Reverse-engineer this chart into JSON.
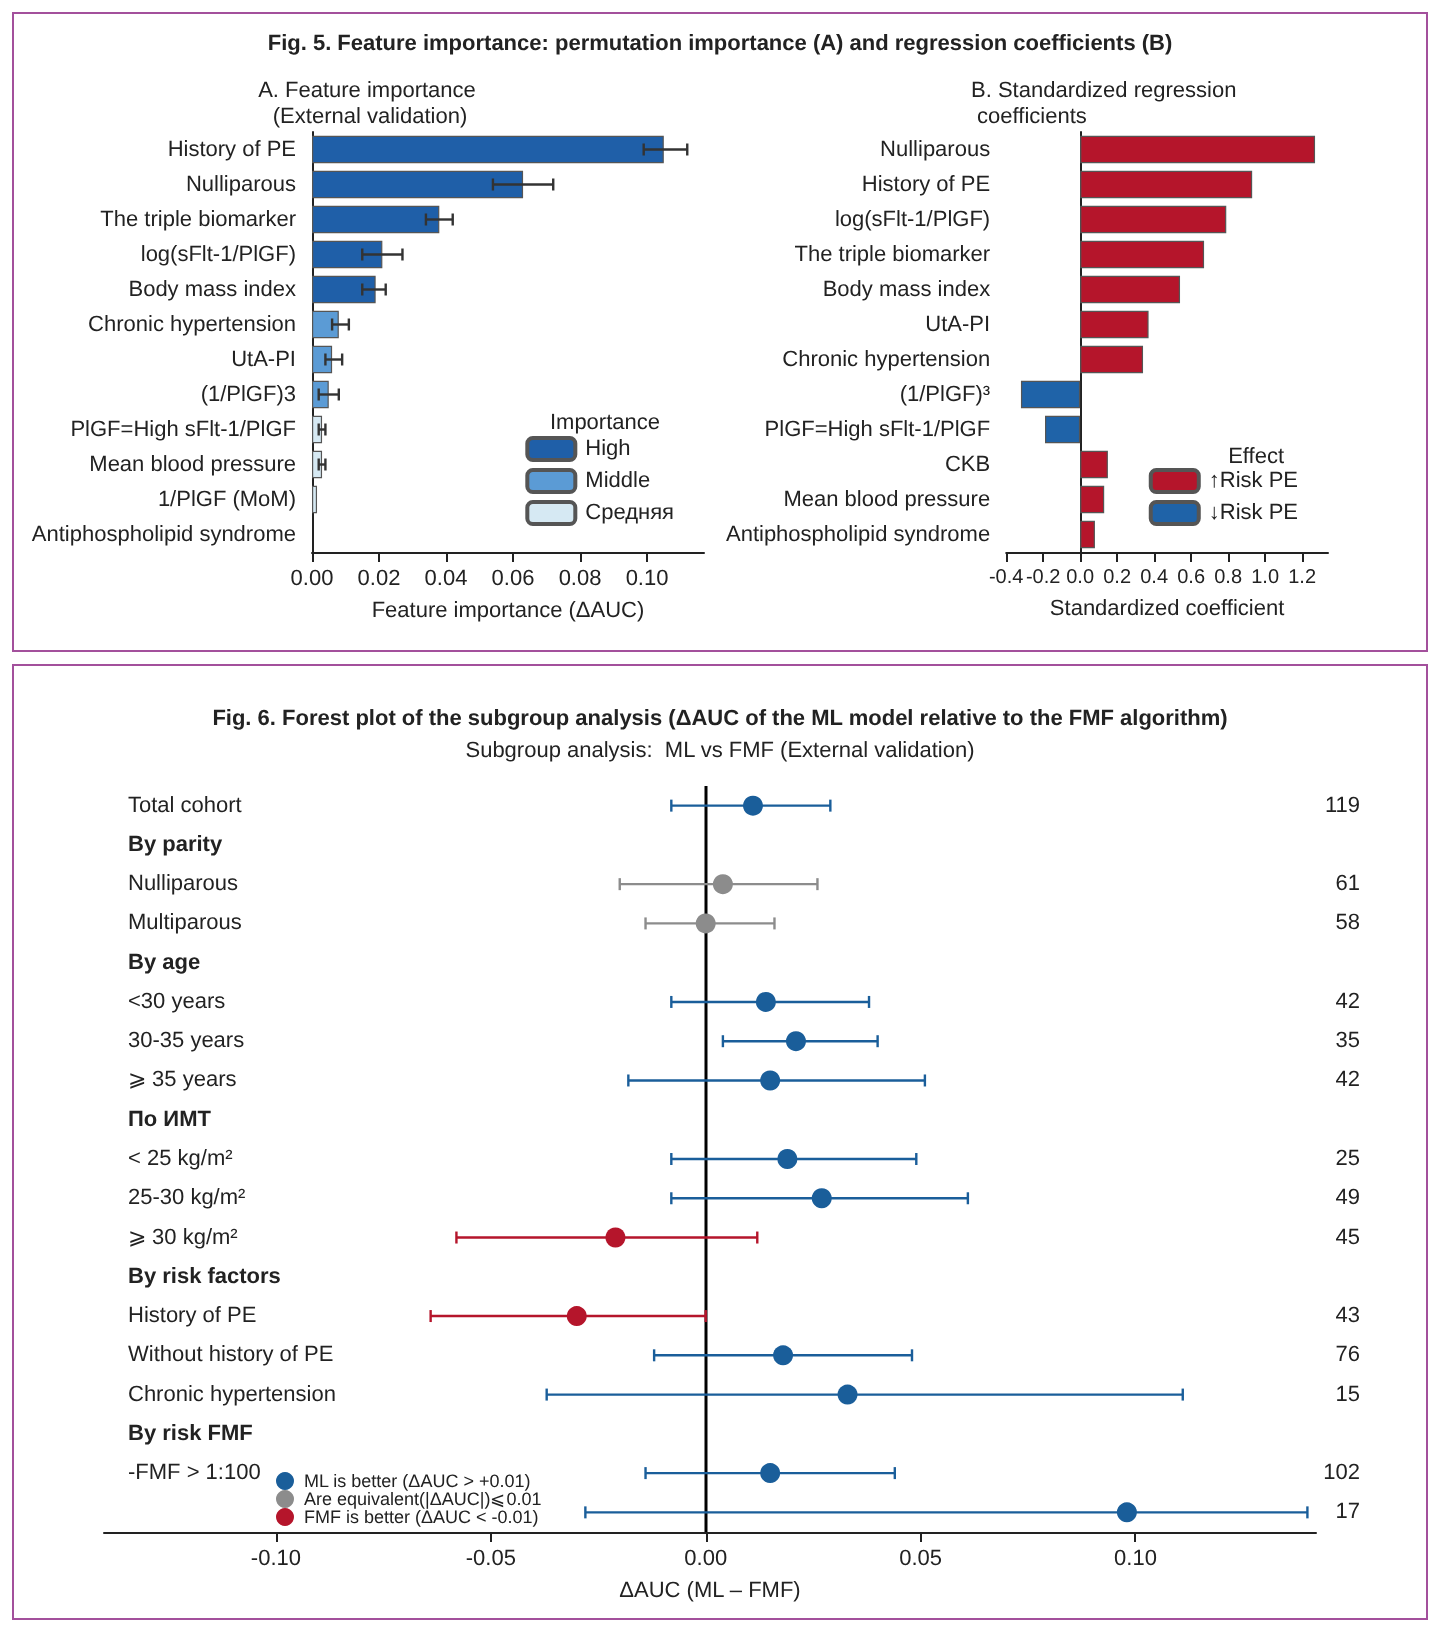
{
  "chart_data": [
    {
      "type": "bar",
      "orientation": "horizontal",
      "title": "Fig. 5. Feature importance: permutation importance (A) and regression coefficients (B)",
      "subtitle": "A. Feature importance (External validation)",
      "xlabel": "Feature importance (ΔAUC)",
      "legend_title": "Importance",
      "legend": "bottom right",
      "categories": [
        "History of PE",
        "Nulliparous",
        "The triple biomarker",
        "log(sFlt-1/PlGF)",
        "Body mass index",
        "Chronic hypertension",
        "UtA-PI",
        "(1/PlGF)3",
        "PlGF=High sFlt-1/PlGF",
        "Mean blood pressure",
        "1/PlGF (MoM)",
        "Antiphospholipid syndrome"
      ],
      "series": [
        {
          "name": "High",
          "color": "#1f5fa8",
          "values": [
            0.105,
            0.063,
            0.038,
            0.021,
            0.019,
            null,
            null,
            null,
            null,
            null,
            null,
            null
          ],
          "errors": [
            [
              0.099,
              0.112
            ],
            [
              0.054,
              0.072
            ],
            [
              0.034,
              0.042
            ],
            [
              0.015,
              0.027
            ],
            [
              0.015,
              0.022
            ],
            null,
            null,
            null,
            null,
            null,
            null,
            null
          ]
        },
        {
          "name": "Middle",
          "color": "#5b9bd5",
          "values": [
            null,
            null,
            null,
            null,
            null,
            0.008,
            0.006,
            0.005,
            null,
            null,
            null,
            null
          ],
          "errors": [
            null,
            null,
            null,
            null,
            null,
            [
              0.006,
              0.011
            ],
            [
              0.004,
              0.009
            ],
            [
              0.002,
              0.008
            ],
            null,
            null,
            null,
            null
          ]
        },
        {
          "name": "Средняя",
          "color": "#d6e9f3",
          "values": [
            null,
            null,
            null,
            null,
            null,
            null,
            null,
            null,
            0.003,
            0.003,
            0.0015,
            null
          ],
          "errors": [
            null,
            null,
            null,
            null,
            null,
            null,
            null,
            null,
            [
              0.002,
              0.004
            ],
            [
              0.002,
              0.004
            ],
            null,
            null
          ]
        }
      ],
      "xlim": [
        0,
        0.117
      ],
      "xticks": [
        {
          "value": 0,
          "label": "0.00"
        },
        {
          "value": 0.02,
          "label": "0.02"
        },
        {
          "value": 0.04,
          "label": "0.04"
        },
        {
          "value": 0.06,
          "label": "0.06"
        },
        {
          "value": 0.08,
          "label": "0.08"
        },
        {
          "value": 0.1,
          "label": "0.10"
        }
      ]
    },
    {
      "type": "bar",
      "orientation": "horizontal",
      "title": "B. Standardized regression coefficients",
      "xlabel": "Standardized coefficient",
      "legend_title": "Effect",
      "legend": "bottom right",
      "categories": [
        "Nulliparous",
        "History of PE",
        "log(sFlt-1/PlGF)",
        "The triple biomarker",
        "Body mass index",
        "UtA-PI",
        "Chronic hypertension",
        "(1/PlGF)³",
        "PlGF=High sFlt-1/PlGF",
        "CKB",
        "Mean blood pressure",
        "Antiphospholipid syndrome"
      ],
      "series": [
        {
          "name": "↑Risk PE",
          "color": "#b5152b",
          "values": [
            1.27,
            0.93,
            0.79,
            0.67,
            0.54,
            0.37,
            0.34,
            null,
            null,
            0.15,
            0.13,
            0.08
          ]
        },
        {
          "name": "↓Risk PE",
          "color": "#1f63a8",
          "values": [
            null,
            null,
            null,
            null,
            null,
            null,
            null,
            -0.32,
            -0.19,
            null,
            null,
            null
          ]
        }
      ],
      "xlim": [
        -0.4,
        1.34
      ],
      "xticks": [
        -0.4,
        -0.2,
        {
          "value": 0,
          "label": "0.0"
        },
        0.2,
        0.4,
        0.6,
        0.8,
        {
          "value": 1,
          "label": "1.0"
        },
        1.2
      ]
    },
    {
      "type": "scatter",
      "orientation": "horizontal",
      "title": "Fig. 6. Forest plot of the subgroup analysis (ΔAUC of the ML model relative to the FMF algorithm)",
      "subtitle": "Subgroup analysis:  ML vs FMF (External validation)",
      "xlabel": "ΔAUC (ML – FMF)",
      "legend": "bottom left",
      "marker": "circle",
      "categories": [
        "Total cohort",
        "By parity",
        "Nulliparous",
        "Multiparous",
        "By age",
        "<30 years",
        "30-35 years",
        "⩾ 35 years",
        "По ИМТ",
        "< 25 kg/m²",
        "25-30 kg/m²",
        "⩾ 30 kg/m²",
        "By risk factors",
        "History of PE",
        "Without history of PE",
        "Chronic hypertension",
        "By risk FMF",
        "-FMF > 1:100",
        null
      ],
      "y2_categories": [
        "119",
        null,
        "61",
        "58",
        null,
        "42",
        "35",
        "42",
        null,
        "25",
        "49",
        "45",
        null,
        "43",
        "76",
        "15",
        null,
        "102",
        "17"
      ],
      "series": [
        {
          "name": "ML is better (ΔAUC > +0.01)",
          "color": "#1a5e9a",
          "values": [
            0.011,
            null,
            null,
            null,
            null,
            0.014,
            0.021,
            0.015,
            null,
            0.019,
            0.027,
            null,
            null,
            null,
            0.018,
            0.033,
            null,
            0.015,
            0.098
          ],
          "errors": [
            [
              -0.008,
              0.029
            ],
            null,
            null,
            null,
            null,
            [
              -0.008,
              0.038
            ],
            [
              0.004,
              0.04
            ],
            [
              -0.018,
              0.051
            ],
            null,
            [
              -0.008,
              0.049
            ],
            [
              -0.008,
              0.061
            ],
            null,
            null,
            null,
            [
              -0.012,
              0.048
            ],
            [
              -0.037,
              0.111
            ],
            null,
            [
              -0.014,
              0.044
            ],
            [
              -0.028,
              0.14
            ]
          ]
        },
        {
          "name": "Are equivalent(|ΔAUC|)⩽0.01",
          "color": "#8c8c8c",
          "values": [
            null,
            null,
            0.004,
            0.0,
            null,
            null,
            null,
            null,
            null,
            null,
            null,
            null,
            null,
            null,
            null,
            null,
            null,
            null,
            null
          ],
          "errors": [
            null,
            null,
            [
              -0.02,
              0.026
            ],
            [
              -0.014,
              0.016
            ],
            null,
            null,
            null,
            null,
            null,
            null,
            null,
            null,
            null,
            null,
            null,
            null,
            null,
            null,
            null
          ]
        },
        {
          "name": "FMF is better (ΔAUC < -0.01)",
          "color": "#b5152b",
          "values": [
            null,
            null,
            null,
            null,
            null,
            null,
            null,
            null,
            null,
            null,
            null,
            -0.021,
            null,
            -0.03,
            null,
            null,
            null,
            null,
            null
          ],
          "errors": [
            null,
            null,
            null,
            null,
            null,
            null,
            null,
            null,
            null,
            null,
            null,
            [
              -0.058,
              0.012
            ],
            null,
            [
              -0.064,
              0.0
            ],
            null,
            null,
            null,
            null,
            null
          ]
        }
      ],
      "xlim": [
        -0.14,
        0.142
      ],
      "xticks": [
        {
          "value": -0.1,
          "label": "-0.10"
        },
        {
          "value": -0.05,
          "label": "-0.05"
        },
        {
          "value": 0,
          "label": "0.00"
        },
        {
          "value": 0.05,
          "label": "0.05"
        },
        {
          "value": 0.1,
          "label": "0.10"
        }
      ],
      "ref_lines": [
        {
          "axis": "x",
          "value": 0,
          "color": "#000000"
        }
      ]
    }
  ]
}
